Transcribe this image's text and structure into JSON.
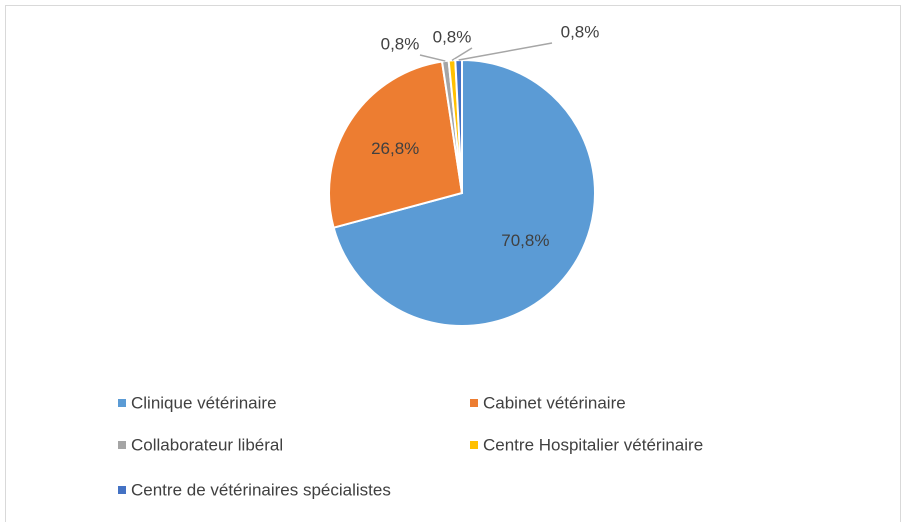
{
  "chart_data": {
    "type": "pie",
    "categories": [
      "Clinique vétérinaire",
      "Cabinet vétérinaire",
      "Collaborateur libéral",
      "Centre Hospitalier vétérinaire",
      "Centre de vétérinaires spécialistes"
    ],
    "values": [
      70.8,
      26.8,
      0.8,
      0.8,
      0.8
    ],
    "value_labels": [
      "70,8%",
      "26,8%",
      "0,8%",
      "0,8%",
      "0,8%"
    ],
    "colors": [
      "#5b9bd5",
      "#ed7d31",
      "#a5a5a5",
      "#ffc000",
      "#4472c4"
    ]
  }
}
